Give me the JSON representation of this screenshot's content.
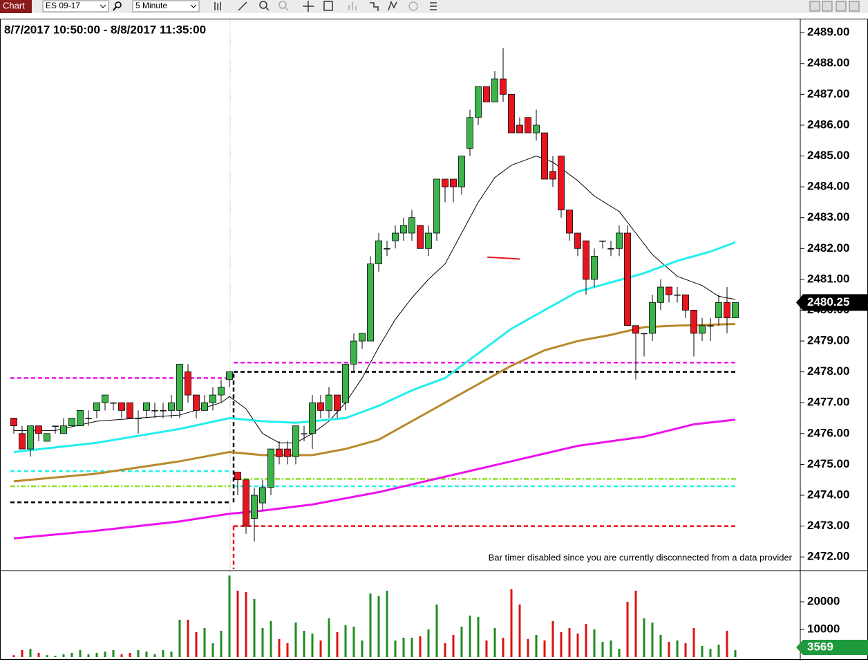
{
  "toolbar": {
    "title": "Chart",
    "instrument": "ES 09-17",
    "interval": "5 Minute"
  },
  "chart_data": {
    "type": "candlestick",
    "title": "8/7/2017 10:50:00 - 8/8/2017 11:35:00",
    "annotation": "Bar timer disabled since you are currently disconnected from a data provider",
    "up_color": "#3cb44a",
    "down_color": "#e8141e",
    "open": [
      2476.5,
      2476.0,
      2475.5,
      2476.25,
      2475.75,
      2476.25,
      2476.0,
      2476.25,
      2476.25,
      2476.5,
      2476.75,
      2477.0,
      2477.0,
      2477.0,
      2477.0,
      2476.5,
      2476.75,
      2476.75,
      2476.75,
      2476.75,
      2476.75,
      2478.0,
      2477.25,
      2476.75,
      2477.0,
      2477.25,
      2477.75,
      2474.75,
      2474.5,
      2473.25,
      2473.75,
      2474.25,
      2475.5,
      2475.5,
      2475.25,
      2476.0,
      2476.0,
      2477.0,
      2476.75,
      2477.25,
      2477.0,
      2478.25,
      2479.0,
      2479.0,
      2481.5,
      2482.0,
      2482.25,
      2482.5,
      2482.5,
      2482.75,
      2482.0,
      2482.5,
      2484.25,
      2484.25,
      2484.0,
      2485.25,
      2486.25,
      2487.25,
      2486.75,
      2487.5,
      2487.0,
      2486.0,
      2486.25,
      2485.75,
      2485.75,
      2484.5,
      2485.0,
      2483.25,
      2482.5,
      2482.25,
      2481.0,
      2482.25,
      2482.0,
      2482.0,
      2482.5,
      2479.5,
      2479.25,
      2479.25,
      2480.25,
      2480.75,
      2480.5,
      2480.5,
      2480.0,
      2479.25,
      2479.5,
      2479.75,
      2480.25,
      2479.75
    ],
    "high": [
      2476.5,
      2476.25,
      2476.25,
      2476.25,
      2476.0,
      2476.25,
      2476.5,
      2476.5,
      2476.75,
      2476.75,
      2477.0,
      2477.25,
      2477.0,
      2477.0,
      2477.0,
      2476.75,
      2477.0,
      2477.0,
      2477.0,
      2477.25,
      2478.25,
      2478.25,
      2477.25,
      2477.25,
      2477.5,
      2477.75,
      2478.0,
      2474.75,
      2474.5,
      2474.25,
      2474.5,
      2475.5,
      2475.75,
      2475.75,
      2476.25,
      2476.25,
      2477.25,
      2477.25,
      2477.5,
      2477.25,
      2478.25,
      2479.25,
      2479.25,
      2481.75,
      2482.5,
      2482.25,
      2482.75,
      2483.0,
      2483.25,
      2482.75,
      2482.75,
      2484.25,
      2484.25,
      2484.25,
      2485.0,
      2486.5,
      2487.25,
      2487.25,
      2487.75,
      2488.5,
      2487.0,
      2486.25,
      2486.25,
      2486.5,
      2485.75,
      2485.0,
      2485.0,
      2483.25,
      2482.5,
      2482.25,
      2482.0,
      2482.25,
      2482.25,
      2482.75,
      2482.75,
      2479.5,
      2479.25,
      2480.5,
      2481.0,
      2480.75,
      2480.75,
      2480.5,
      2480.0,
      2479.75,
      2479.75,
      2480.5,
      2480.75,
      2480.25
    ],
    "low": [
      2476.0,
      2475.5,
      2475.25,
      2475.75,
      2475.75,
      2476.0,
      2476.0,
      2476.25,
      2476.25,
      2476.25,
      2476.5,
      2476.75,
      2476.75,
      2476.5,
      2476.5,
      2476.0,
      2476.5,
      2476.5,
      2476.5,
      2476.5,
      2476.5,
      2477.0,
      2476.5,
      2476.75,
      2476.75,
      2477.0,
      2477.5,
      2474.0,
      2472.75,
      2472.5,
      2473.5,
      2474.0,
      2475.0,
      2475.0,
      2475.0,
      2475.75,
      2475.5,
      2476.5,
      2476.5,
      2476.5,
      2476.75,
      2478.0,
      2478.75,
      2479.0,
      2481.25,
      2481.75,
      2482.0,
      2482.25,
      2482.25,
      2482.0,
      2481.75,
      2482.25,
      2483.5,
      2483.5,
      2483.75,
      2485.0,
      2486.0,
      2486.75,
      2486.75,
      2486.75,
      2485.75,
      2485.75,
      2485.75,
      2485.5,
      2484.25,
      2484.0,
      2483.0,
      2482.25,
      2481.75,
      2480.5,
      2480.75,
      2482.0,
      2481.75,
      2481.75,
      2479.5,
      2477.75,
      2478.5,
      2479.0,
      2480.0,
      2480.25,
      2480.25,
      2479.75,
      2478.5,
      2479.0,
      2479.0,
      2479.5,
      2479.25,
      2479.75
    ],
    "close": [
      2476.25,
      2475.5,
      2476.25,
      2476.0,
      2476.0,
      2476.25,
      2476.25,
      2476.5,
      2476.75,
      2476.5,
      2477.0,
      2477.25,
      2477.0,
      2476.75,
      2476.5,
      2476.5,
      2477.0,
      2476.75,
      2476.75,
      2477.0,
      2478.25,
      2477.25,
      2476.75,
      2477.0,
      2477.25,
      2477.5,
      2478.0,
      2474.5,
      2473.0,
      2474.0,
      2474.25,
      2475.5,
      2475.25,
      2475.25,
      2476.25,
      2476.0,
      2477.0,
      2476.75,
      2477.25,
      2476.75,
      2478.25,
      2479.0,
      2479.25,
      2481.5,
      2482.25,
      2482.0,
      2482.5,
      2482.75,
      2483.0,
      2482.0,
      2482.5,
      2484.25,
      2484.0,
      2484.0,
      2485.0,
      2486.25,
      2487.25,
      2486.75,
      2487.5,
      2487.0,
      2485.75,
      2485.75,
      2485.75,
      2486.0,
      2484.25,
      2484.25,
      2483.25,
      2482.5,
      2482.0,
      2481.0,
      2481.75,
      2482.25,
      2482.0,
      2482.5,
      2479.5,
      2479.25,
      2479.25,
      2480.25,
      2480.75,
      2480.5,
      2480.5,
      2480.0,
      2479.25,
      2479.5,
      2479.5,
      2480.25,
      2479.75,
      2480.25
    ],
    "ylim": [
      2471.6,
      2489.43
    ],
    "yticks": [
      {
        "value": 2472,
        "label": "2472.00"
      },
      {
        "value": 2473,
        "label": "2473.00"
      },
      {
        "value": 2474,
        "label": "2474.00"
      },
      {
        "value": 2475,
        "label": "2475.00"
      },
      {
        "value": 2476,
        "label": "2476.00"
      },
      {
        "value": 2477,
        "label": "2477.00"
      },
      {
        "value": 2478,
        "label": "2478.00"
      },
      {
        "value": 2479,
        "label": "2479.00"
      },
      {
        "value": 2480,
        "label": "2480.00"
      },
      {
        "value": 2481,
        "label": "2481.00"
      },
      {
        "value": 2482,
        "label": "2482.00"
      },
      {
        "value": 2483,
        "label": "2483.00"
      },
      {
        "value": 2484,
        "label": "2484.00"
      },
      {
        "value": 2485,
        "label": "2485.00"
      },
      {
        "value": 2486,
        "label": "2486.00"
      },
      {
        "value": 2487,
        "label": "2487.00"
      },
      {
        "value": 2488,
        "label": "2488.00"
      },
      {
        "value": 2489,
        "label": "2489.00"
      }
    ],
    "last_price": 2480.25,
    "lines": [
      {
        "color": "#000000",
        "x": [
          0,
          5,
          10,
          15,
          20,
          25,
          26,
          28,
          30,
          32,
          34,
          36,
          38,
          40,
          42,
          44,
          46,
          48,
          50,
          52,
          54,
          56,
          58,
          60,
          63,
          65,
          68,
          70,
          73,
          75,
          77,
          80,
          83,
          85,
          87
        ],
        "values": [
          2476.1,
          2476.1,
          2476.4,
          2476.5,
          2476.6,
          2477.0,
          2477.2,
          2476.8,
          2476.0,
          2475.7,
          2475.7,
          2476.0,
          2476.4,
          2477.0,
          2477.8,
          2478.8,
          2479.7,
          2480.4,
          2481.0,
          2481.5,
          2482.5,
          2483.5,
          2484.3,
          2484.7,
          2485.0,
          2484.8,
          2484.2,
          2483.7,
          2483.2,
          2482.5,
          2481.8,
          2481.1,
          2480.8,
          2480.45,
          2480.35
        ]
      },
      {
        "color": "#22eeee",
        "x": [
          0,
          10,
          20,
          26,
          30,
          34,
          40,
          44,
          48,
          52,
          56,
          60,
          64,
          68,
          72,
          76,
          80,
          84,
          87
        ],
        "values": [
          2475.4,
          2475.7,
          2476.15,
          2476.5,
          2476.4,
          2476.35,
          2476.5,
          2476.9,
          2477.4,
          2477.8,
          2478.6,
          2479.4,
          2480.0,
          2480.6,
          2480.9,
          2481.2,
          2481.6,
          2481.9,
          2482.2
        ]
      },
      {
        "color": "#b8892a",
        "x": [
          0,
          10,
          20,
          26,
          30,
          36,
          40,
          44,
          48,
          52,
          56,
          60,
          64,
          68,
          72,
          76,
          80,
          87
        ],
        "values": [
          2474.45,
          2474.7,
          2475.1,
          2475.4,
          2475.3,
          2475.3,
          2475.5,
          2475.8,
          2476.4,
          2477.0,
          2477.6,
          2478.2,
          2478.7,
          2479.0,
          2479.2,
          2479.45,
          2479.5,
          2479.55
        ]
      },
      {
        "color": "#ee11ee",
        "x": [
          0,
          10,
          20,
          26,
          30,
          36,
          44,
          52,
          60,
          68,
          76,
          82,
          87
        ],
        "values": [
          2472.6,
          2472.85,
          2473.15,
          2473.4,
          2473.5,
          2473.7,
          2474.1,
          2474.6,
          2475.1,
          2475.6,
          2475.9,
          2476.3,
          2476.45
        ]
      }
    ],
    "drawing": {
      "color": "#e8141e",
      "x": [
        57.1,
        61
      ],
      "values": [
        2481.72,
        2481.66
      ]
    },
    "levels_prior": [
      {
        "value": 2477.8,
        "color": "#ee11ee",
        "style": "dash"
      },
      {
        "value": 2474.78,
        "color": "#22eeee",
        "style": "dash"
      },
      {
        "value": 2474.29,
        "color": "#88e022",
        "style": "dashdot"
      },
      {
        "value": 2473.77,
        "color": "#000000",
        "style": "dash"
      }
    ],
    "levels_current": [
      {
        "value": 2478.3,
        "color": "#ee11ee",
        "style": "dash"
      },
      {
        "value": 2478.0,
        "color": "#000000",
        "style": "dash"
      },
      {
        "value": 2474.53,
        "color": "#88e022",
        "style": "dashdot"
      },
      {
        "value": 2474.29,
        "color": "#22eeee",
        "style": "dash"
      },
      {
        "value": 2473.0,
        "color": "#e8141e",
        "style": "dash"
      }
    ],
    "volume": {
      "values": [
        700,
        2500,
        3000,
        1500,
        700,
        500,
        1000,
        1500,
        2500,
        1000,
        1500,
        2000,
        2500,
        1000,
        1500,
        2500,
        2000,
        1000,
        2500,
        2000,
        13500,
        13500,
        9000,
        10500,
        5000,
        9500,
        29500,
        24000,
        23500,
        21000,
        10500,
        13000,
        6500,
        5000,
        12500,
        9500,
        8500,
        6000,
        14000,
        9000,
        11500,
        11000,
        6000,
        23000,
        22000,
        24000,
        6000,
        7000,
        7000,
        7500,
        10000,
        19000,
        5000,
        8000,
        11000,
        15000,
        14500,
        6000,
        10500,
        7000,
        24500,
        19000,
        6500,
        8000,
        6000,
        13000,
        9000,
        10500,
        8500,
        12000,
        10000,
        5500,
        6000,
        3000,
        20000,
        24000,
        14000,
        12500,
        8000,
        5500,
        6000,
        5000,
        10500,
        4000,
        3000,
        4500,
        9500,
        2500
      ],
      "ylim": [
        0,
        30500
      ],
      "yticks": [
        10000,
        20000
      ],
      "last": 3569
    }
  }
}
